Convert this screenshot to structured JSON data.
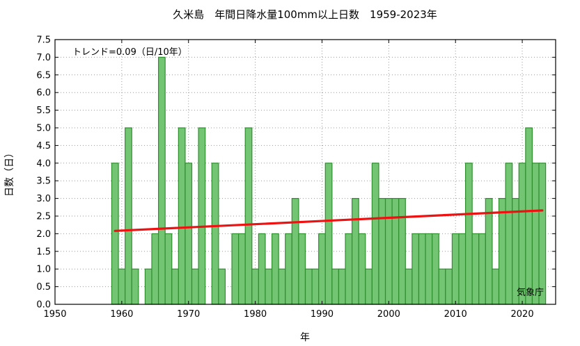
{
  "chart_data": {
    "type": "bar",
    "title": "久米島　年間日降水量100mm以上日数　1959-2023年",
    "xlabel": "年",
    "ylabel": "日数（日）",
    "xlim": [
      1950,
      2025
    ],
    "ylim": [
      0,
      7.5
    ],
    "x_ticks": [
      1950,
      1960,
      1970,
      1980,
      1990,
      2000,
      2010,
      2020
    ],
    "y_ticks": [
      "0.0",
      "0.5",
      "1.0",
      "1.5",
      "2.0",
      "2.5",
      "3.0",
      "3.5",
      "4.0",
      "4.5",
      "5.0",
      "5.5",
      "6.0",
      "6.5",
      "7.0",
      "7.5"
    ],
    "grid": true,
    "bar_color": "#73c473",
    "bar_edge_color": "#2f8f2f",
    "trend_color": "#ee1111",
    "trend_label": "トレンド=0.09（日/10年）",
    "trend_line": {
      "x": [
        1959,
        2023
      ],
      "y": [
        2.08,
        2.66
      ]
    },
    "source_label": "気象庁",
    "x": [
      1959,
      1960,
      1961,
      1962,
      1963,
      1964,
      1965,
      1966,
      1967,
      1968,
      1969,
      1970,
      1971,
      1972,
      1973,
      1974,
      1975,
      1976,
      1977,
      1978,
      1979,
      1980,
      1981,
      1982,
      1983,
      1984,
      1985,
      1986,
      1987,
      1988,
      1989,
      1990,
      1991,
      1992,
      1993,
      1994,
      1995,
      1996,
      1997,
      1998,
      1999,
      2000,
      2001,
      2002,
      2003,
      2004,
      2005,
      2006,
      2007,
      2008,
      2009,
      2010,
      2011,
      2012,
      2013,
      2014,
      2015,
      2016,
      2017,
      2018,
      2019,
      2020,
      2021,
      2022,
      2023
    ],
    "values": [
      4,
      1,
      5,
      1,
      0,
      1,
      2,
      7,
      2,
      1,
      5,
      4,
      1,
      5,
      0,
      4,
      1,
      0,
      2,
      2,
      5,
      1,
      2,
      1,
      2,
      1,
      2,
      3,
      2,
      1,
      1,
      2,
      4,
      1,
      1,
      2,
      3,
      2,
      1,
      4,
      3,
      3,
      3,
      3,
      1,
      2,
      2,
      2,
      2,
      1,
      1,
      2,
      2,
      4,
      2,
      2,
      3,
      1,
      3,
      4,
      3,
      4,
      5,
      4,
      4
    ]
  }
}
